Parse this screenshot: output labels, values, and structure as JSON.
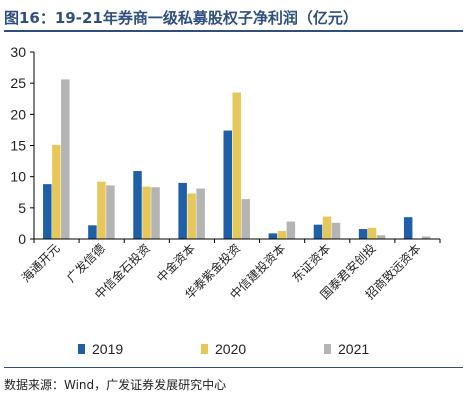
{
  "title": "图16：19-21年券商一级私募股权子净利润（亿元）",
  "source": "数据来源：Wind，广发证券发展研究中心",
  "colors": {
    "2019": "#1f5fa8",
    "2020": "#e6c85a",
    "2021": "#b4b4b4",
    "axis": "#000000",
    "title": "#2f4f7f"
  },
  "chart_data": {
    "type": "bar",
    "categories": [
      "海通开元",
      "广发信德",
      "中信金石投资",
      "中金资本",
      "华泰紫金投资",
      "中信建投资本",
      "东证资本",
      "国泰君安创投",
      "招商致远资本"
    ],
    "series": [
      {
        "name": "2019",
        "values": [
          8.8,
          2.2,
          10.9,
          9.0,
          17.4,
          0.9,
          2.3,
          1.6,
          3.5
        ]
      },
      {
        "name": "2020",
        "values": [
          15.1,
          9.2,
          8.4,
          7.3,
          23.5,
          1.3,
          3.6,
          1.8,
          0.0
        ]
      },
      {
        "name": "2021",
        "values": [
          25.6,
          8.6,
          8.3,
          8.1,
          6.4,
          2.8,
          2.6,
          0.6,
          0.4
        ]
      }
    ],
    "ylim": [
      0,
      30
    ],
    "yticks": [
      "0",
      "5",
      "10",
      "15",
      "20",
      "25",
      "30"
    ],
    "xlabel": "",
    "ylabel": "",
    "legend_position": "bottom",
    "grid": false
  }
}
